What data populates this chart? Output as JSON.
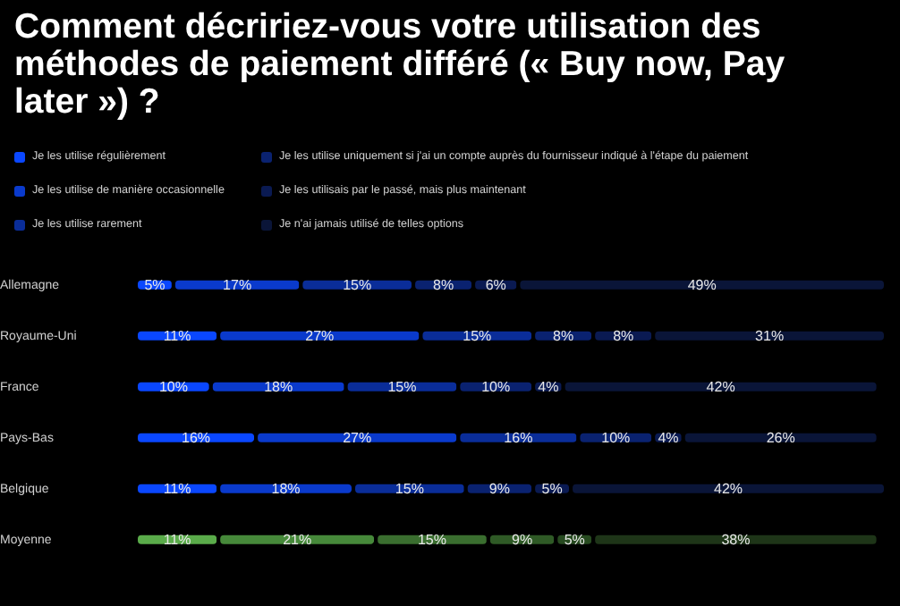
{
  "chart_data": {
    "type": "bar",
    "orientation": "horizontal",
    "stacked": true,
    "title": "Comment décririez-vous votre utilisation des méthodes de paiement différé (« Buy now, Pay later ») ?",
    "categories": [
      "Allemagne",
      "Royaume-Uni",
      "France",
      "Pays-Bas",
      "Belgique",
      "Moyenne"
    ],
    "legend": "top left",
    "tick_labels": "y",
    "series": [
      {
        "name": "Je les utilise régulièrement",
        "color": "#0a47ff",
        "colors": [
          "#0a47ff",
          "#0a47ff",
          "#0a47ff",
          "#0a47ff",
          "#0a47ff",
          "#5aab4a"
        ],
        "values": [
          5,
          11,
          10,
          16,
          11,
          11
        ],
        "value_labels": [
          "5%",
          "11%",
          "10%",
          "16%",
          "11%",
          "11%"
        ]
      },
      {
        "name": "Je les utilise de manière occasionnelle",
        "color": "#0a3acc",
        "colors": [
          "#0a3acc",
          "#0a3acc",
          "#0a3acc",
          "#0a3acc",
          "#0a3acc",
          "#46893a"
        ],
        "values": [
          17,
          27,
          18,
          27,
          18,
          21
        ],
        "value_labels": [
          "17%",
          "27%",
          "18%",
          "27%",
          "18%",
          "21%"
        ]
      },
      {
        "name": "Je les utilise rarement",
        "color": "#0a2d99",
        "colors": [
          "#0a2d99",
          "#0a2d99",
          "#0a2d99",
          "#0a2d99",
          "#0a2d99",
          "#3a6e2f"
        ],
        "values": [
          15,
          15,
          15,
          16,
          15,
          15
        ],
        "value_labels": [
          "15%",
          "15%",
          "15%",
          "16%",
          "15%",
          "15%"
        ]
      },
      {
        "name": "Je les utilise uniquement si j'ai un compte auprès du fournisseur indiqué à l'étape du paiement",
        "color": "#0a2270",
        "colors": [
          "#0a2270",
          "#0a2270",
          "#0a2270",
          "#0a2270",
          "#0a2270",
          "#2f5a26"
        ],
        "values": [
          8,
          8,
          10,
          10,
          9,
          9
        ],
        "value_labels": [
          "8%",
          "8%",
          "10%",
          "10%",
          "9%",
          "9%"
        ]
      },
      {
        "name": "Je les utilisais par le passé, mais plus maintenant",
        "color": "#0a1a52",
        "colors": [
          "#0a1a52",
          "#0a1a52",
          "#0a1a52",
          "#0a1a52",
          "#0a1a52",
          "#274a20"
        ],
        "values": [
          6,
          8,
          4,
          4,
          5,
          5
        ],
        "value_labels": [
          "6%",
          "8%",
          "4%",
          "4%",
          "5%",
          "5%"
        ]
      },
      {
        "name": "Je n'ai jamais utilisé de telles options",
        "color": "#0a1538",
        "colors": [
          "#0a1538",
          "#0a1538",
          "#0a1538",
          "#0a1538",
          "#0a1538",
          "#1e3518"
        ],
        "values": [
          49,
          31,
          42,
          26,
          42,
          38
        ],
        "value_labels": [
          "49%",
          "31%",
          "42%",
          "26%",
          "42%",
          "38%"
        ]
      }
    ]
  }
}
